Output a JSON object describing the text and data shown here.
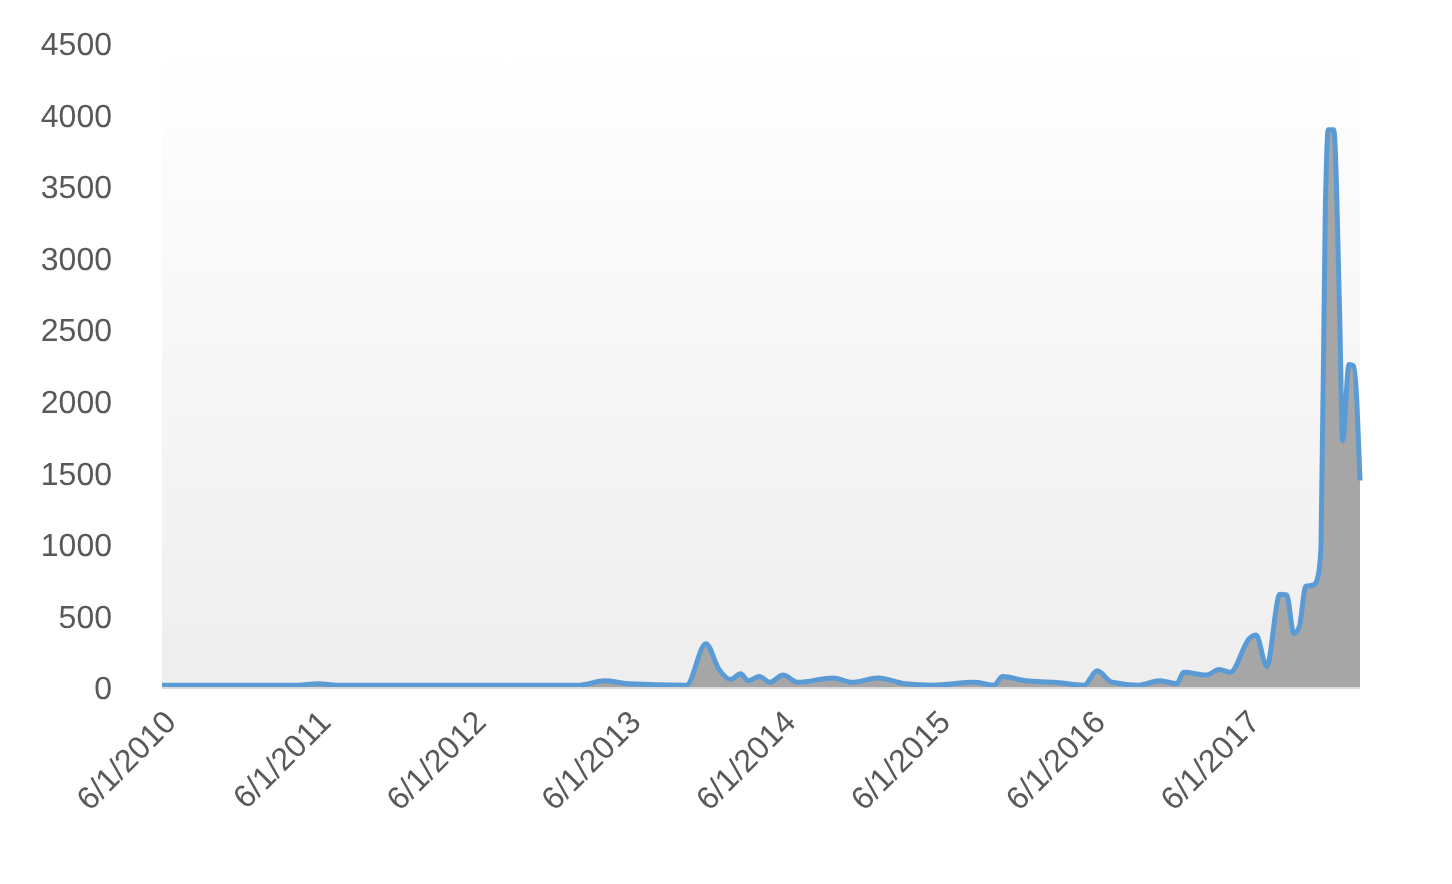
{
  "chart_data": {
    "type": "area",
    "x": [
      "2010-06-01",
      "2011-04-15",
      "2011-06-05",
      "2011-07-20",
      "2013-02-10",
      "2013-04-10",
      "2013-06-05",
      "2013-10-20",
      "2013-12-05",
      "2014-01-05",
      "2014-02-01",
      "2014-02-25",
      "2014-03-15",
      "2014-04-10",
      "2014-05-05",
      "2014-06-05",
      "2014-07-10",
      "2014-10-01",
      "2014-11-15",
      "2015-01-15",
      "2015-03-20",
      "2015-05-25",
      "2015-08-30",
      "2015-10-15",
      "2015-11-05",
      "2015-12-30",
      "2016-03-05",
      "2016-05-15",
      "2016-06-15",
      "2016-07-20",
      "2016-09-20",
      "2016-11-10",
      "2016-12-20",
      "2017-01-05",
      "2017-02-28",
      "2017-03-30",
      "2017-04-25",
      "2017-06-10",
      "2017-06-25",
      "2017-07-20",
      "2017-08-20",
      "2017-09-05",
      "2017-09-22",
      "2017-10-05",
      "2017-10-20",
      "2017-11-08",
      "2017-11-18",
      "2017-11-25",
      "2017-12-05",
      "2017-12-12",
      "2017-12-25",
      "2018-01-08",
      "2018-01-15",
      "2018-01-30",
      "2018-02-10",
      "2018-02-25"
    ],
    "series": [
      {
        "color": "#a6a6a6",
        "values": [
          20,
          20,
          30,
          20,
          20,
          50,
          30,
          20,
          310,
          130,
          60,
          100,
          50,
          80,
          40,
          90,
          40,
          70,
          40,
          70,
          30,
          20,
          40,
          20,
          80,
          50,
          40,
          20,
          120,
          40,
          20,
          50,
          30,
          110,
          90,
          130,
          110,
          350,
          370,
          150,
          655,
          650,
          380,
          430,
          710,
          720,
          780,
          990,
          3310,
          3900,
          3900,
          2610,
          1730,
          2260,
          2250,
          1450
        ]
      }
    ],
    "xlim": [
      "2010-06-01",
      "2018-02-25"
    ],
    "xticks": [
      {
        "value": "2010-06-01",
        "label": "6/1/2010"
      },
      {
        "value": "2011-06-01",
        "label": "6/1/2011"
      },
      {
        "value": "2012-06-01",
        "label": "6/1/2012"
      },
      {
        "value": "2013-06-01",
        "label": "6/1/2013"
      },
      {
        "value": "2014-06-01",
        "label": "6/1/2014"
      },
      {
        "value": "2015-06-01",
        "label": "6/1/2015"
      },
      {
        "value": "2016-06-01",
        "label": "6/1/2016"
      },
      {
        "value": "2017-06-01",
        "label": "6/1/2017"
      }
    ],
    "ylim": [
      0,
      4500
    ],
    "yticks": [
      0,
      500,
      1000,
      1500,
      2000,
      2500,
      3000,
      3500,
      4000,
      4500
    ]
  }
}
